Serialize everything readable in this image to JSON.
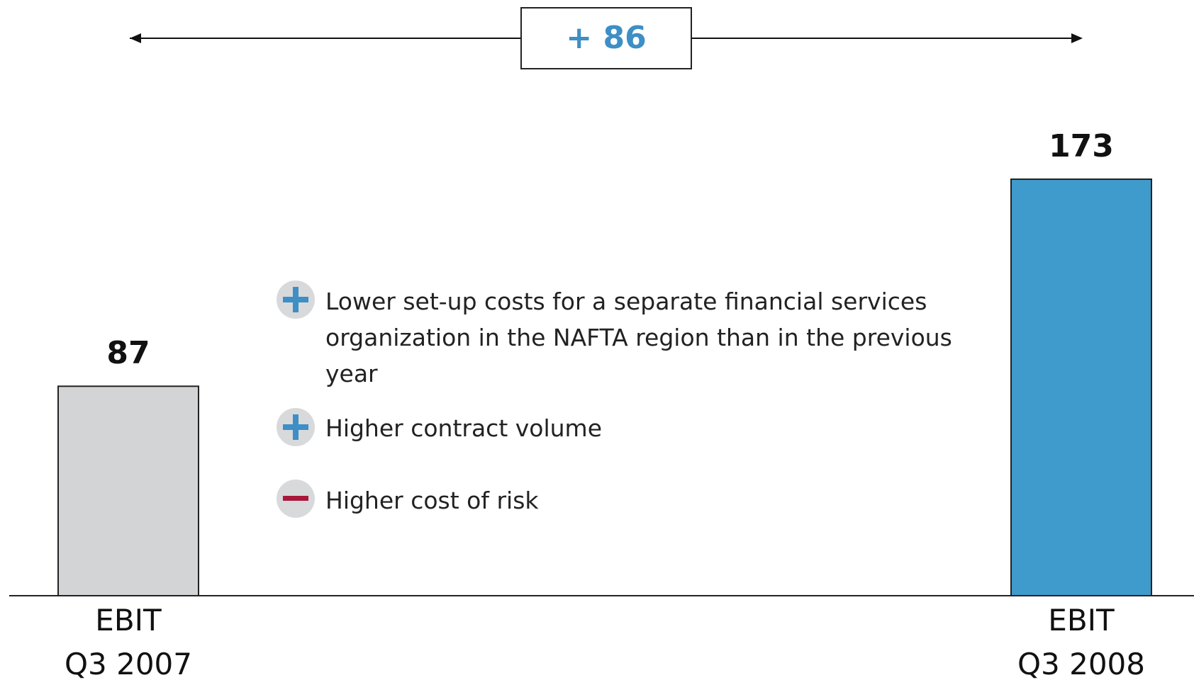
{
  "chart_data": {
    "type": "bar",
    "categories": [
      "EBIT\nQ3 2007",
      "EBIT\nQ3 2008"
    ],
    "values": [
      87,
      173
    ],
    "colors": [
      "#d3d4d6",
      "#3f9bcb"
    ],
    "annotation": "+ 86",
    "notes": [
      "Lower set-up costs for a separate financial services organization in the NAFTA region than in the previous year",
      "Higher contract volume",
      "Higher cost of risk"
    ]
  }
}
